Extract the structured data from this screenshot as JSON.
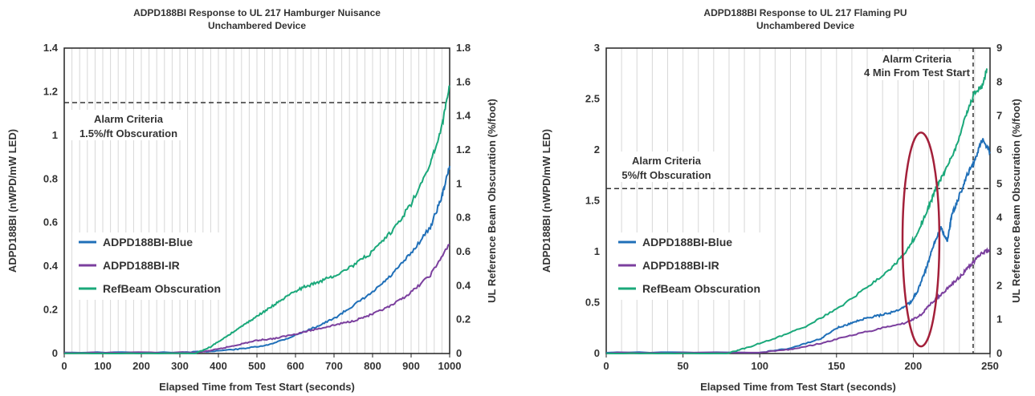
{
  "chart_data": [
    {
      "type": "line",
      "title": "ADPD188BI Response to UL 217 Hamburger Nuisance",
      "subtitle": "Unchambered Device",
      "xlabel": "Elapsed Time from Test Start (seconds)",
      "ylabel": "ADPD188BI (nWPD/mW LED)",
      "y2label": "UL Reference Beam Obscuration (%/foot)",
      "xlim": [
        0,
        1000
      ],
      "ylim": [
        0,
        1.4
      ],
      "y2lim": [
        0,
        1.8
      ],
      "xticks": [
        "0",
        "100",
        "200",
        "300",
        "400",
        "500",
        "600",
        "700",
        "800",
        "900",
        "1000"
      ],
      "yticks": [
        "0",
        "0.2",
        "0.4",
        "0.6",
        "0.8",
        "1",
        "1.2",
        "1.4"
      ],
      "y2ticks": [
        "0",
        "0.2",
        "0.4",
        "0.6",
        "0.8",
        "1",
        "1.2",
        "1.4",
        "1.6",
        "1.8"
      ],
      "grid": "vertical",
      "legend_position": "left-middle",
      "alarm": {
        "value": 1.15,
        "axis": "left",
        "label_lines": [
          "Alarm Criteria",
          "1.5%/ft Obscuration"
        ]
      },
      "series": [
        {
          "name": "ADPD188BI-Blue",
          "color": "#1f6fb8",
          "axis": "left",
          "points": [
            [
              0,
              0.005
            ],
            [
              300,
              0.005
            ],
            [
              380,
              0.01
            ],
            [
              450,
              0.02
            ],
            [
              520,
              0.035
            ],
            [
              580,
              0.07
            ],
            [
              650,
              0.12
            ],
            [
              700,
              0.16
            ],
            [
              750,
              0.22
            ],
            [
              800,
              0.28
            ],
            [
              850,
              0.36
            ],
            [
              900,
              0.46
            ],
            [
              950,
              0.58
            ],
            [
              980,
              0.72
            ],
            [
              1000,
              0.86
            ]
          ]
        },
        {
          "name": "ADPD188BI-IR",
          "color": "#7b3f9e",
          "axis": "left",
          "points": [
            [
              0,
              0.003
            ],
            [
              350,
              0.005
            ],
            [
              400,
              0.02
            ],
            [
              450,
              0.04
            ],
            [
              500,
              0.06
            ],
            [
              550,
              0.07
            ],
            [
              600,
              0.09
            ],
            [
              650,
              0.11
            ],
            [
              700,
              0.13
            ],
            [
              750,
              0.15
            ],
            [
              800,
              0.18
            ],
            [
              850,
              0.22
            ],
            [
              900,
              0.28
            ],
            [
              950,
              0.36
            ],
            [
              1000,
              0.5
            ]
          ]
        },
        {
          "name": "RefBeam Obscuration",
          "color": "#1aa87a",
          "axis": "right",
          "points": [
            [
              0,
              0.0
            ],
            [
              340,
              0.0
            ],
            [
              380,
              0.04
            ],
            [
              420,
              0.1
            ],
            [
              460,
              0.16
            ],
            [
              500,
              0.22
            ],
            [
              540,
              0.28
            ],
            [
              580,
              0.34
            ],
            [
              620,
              0.39
            ],
            [
              660,
              0.42
            ],
            [
              700,
              0.46
            ],
            [
              750,
              0.52
            ],
            [
              800,
              0.6
            ],
            [
              850,
              0.72
            ],
            [
              900,
              0.88
            ],
            [
              950,
              1.12
            ],
            [
              980,
              1.34
            ],
            [
              1000,
              1.58
            ]
          ]
        }
      ]
    },
    {
      "type": "line",
      "title": "ADPD188BI Response to UL 217 Flaming PU",
      "subtitle": "Unchambered Device",
      "xlabel": "Elapsed Time from Test Start (seconds)",
      "ylabel": "ADPD188BI (nWPD/mW  LED)",
      "y2label": "UL Reference Beam Obscuration (%/foot)",
      "xlim": [
        0,
        250
      ],
      "ylim": [
        0,
        3
      ],
      "y2lim": [
        0,
        9
      ],
      "xticks": [
        "0",
        "50",
        "100",
        "150",
        "200",
        "250"
      ],
      "yticks": [
        "0",
        "0.5",
        "1",
        "1.5",
        "2",
        "2.5",
        "3"
      ],
      "y2ticks": [
        "0",
        "1",
        "2",
        "3",
        "4",
        "5",
        "6",
        "7",
        "8",
        "9"
      ],
      "grid": "vertical",
      "legend_position": "left-middle",
      "alarm": {
        "value": 1.62,
        "axis": "left",
        "label_lines": [
          "Alarm Criteria",
          "5%/ft Obscuration"
        ]
      },
      "alarm_time": {
        "value": 239,
        "label_lines": [
          "Alarm Criteria",
          "4 Min From Test Start"
        ]
      },
      "highlight_ellipse": {
        "cx": 205,
        "cy": 1.12,
        "rx": 12,
        "ry": 1.05
      },
      "series": [
        {
          "name": "ADPD188BI-Blue",
          "color": "#1f6fb8",
          "axis": "left",
          "points": [
            [
              0,
              0.01
            ],
            [
              100,
              0.01
            ],
            [
              120,
              0.05
            ],
            [
              140,
              0.15
            ],
            [
              150,
              0.25
            ],
            [
              160,
              0.3
            ],
            [
              170,
              0.35
            ],
            [
              180,
              0.38
            ],
            [
              190,
              0.42
            ],
            [
              198,
              0.5
            ],
            [
              203,
              0.62
            ],
            [
              208,
              0.82
            ],
            [
              213,
              1.05
            ],
            [
              218,
              1.25
            ],
            [
              222,
              1.1
            ],
            [
              225,
              1.35
            ],
            [
              230,
              1.55
            ],
            [
              235,
              1.75
            ],
            [
              240,
              1.9
            ],
            [
              245,
              2.1
            ],
            [
              250,
              1.98
            ]
          ]
        },
        {
          "name": "ADPD188BI-IR",
          "color": "#7b3f9e",
          "axis": "left",
          "points": [
            [
              0,
              0.005
            ],
            [
              100,
              0.01
            ],
            [
              120,
              0.04
            ],
            [
              140,
              0.1
            ],
            [
              160,
              0.18
            ],
            [
              180,
              0.25
            ],
            [
              195,
              0.3
            ],
            [
              205,
              0.38
            ],
            [
              212,
              0.5
            ],
            [
              218,
              0.58
            ],
            [
              225,
              0.68
            ],
            [
              232,
              0.78
            ],
            [
              238,
              0.88
            ],
            [
              244,
              0.98
            ],
            [
              250,
              1.02
            ]
          ]
        },
        {
          "name": "RefBeam Obscuration",
          "color": "#1aa87a",
          "axis": "right",
          "points": [
            [
              0,
              0.0
            ],
            [
              78,
              0.0
            ],
            [
              90,
              0.15
            ],
            [
              110,
              0.45
            ],
            [
              130,
              0.8
            ],
            [
              150,
              1.3
            ],
            [
              170,
              1.95
            ],
            [
              185,
              2.5
            ],
            [
              195,
              2.95
            ],
            [
              203,
              3.6
            ],
            [
              210,
              4.3
            ],
            [
              215,
              4.9
            ],
            [
              220,
              5.3
            ],
            [
              228,
              6.1
            ],
            [
              235,
              7.1
            ],
            [
              240,
              7.7
            ],
            [
              245,
              7.9
            ],
            [
              248,
              8.4
            ]
          ]
        }
      ]
    }
  ]
}
